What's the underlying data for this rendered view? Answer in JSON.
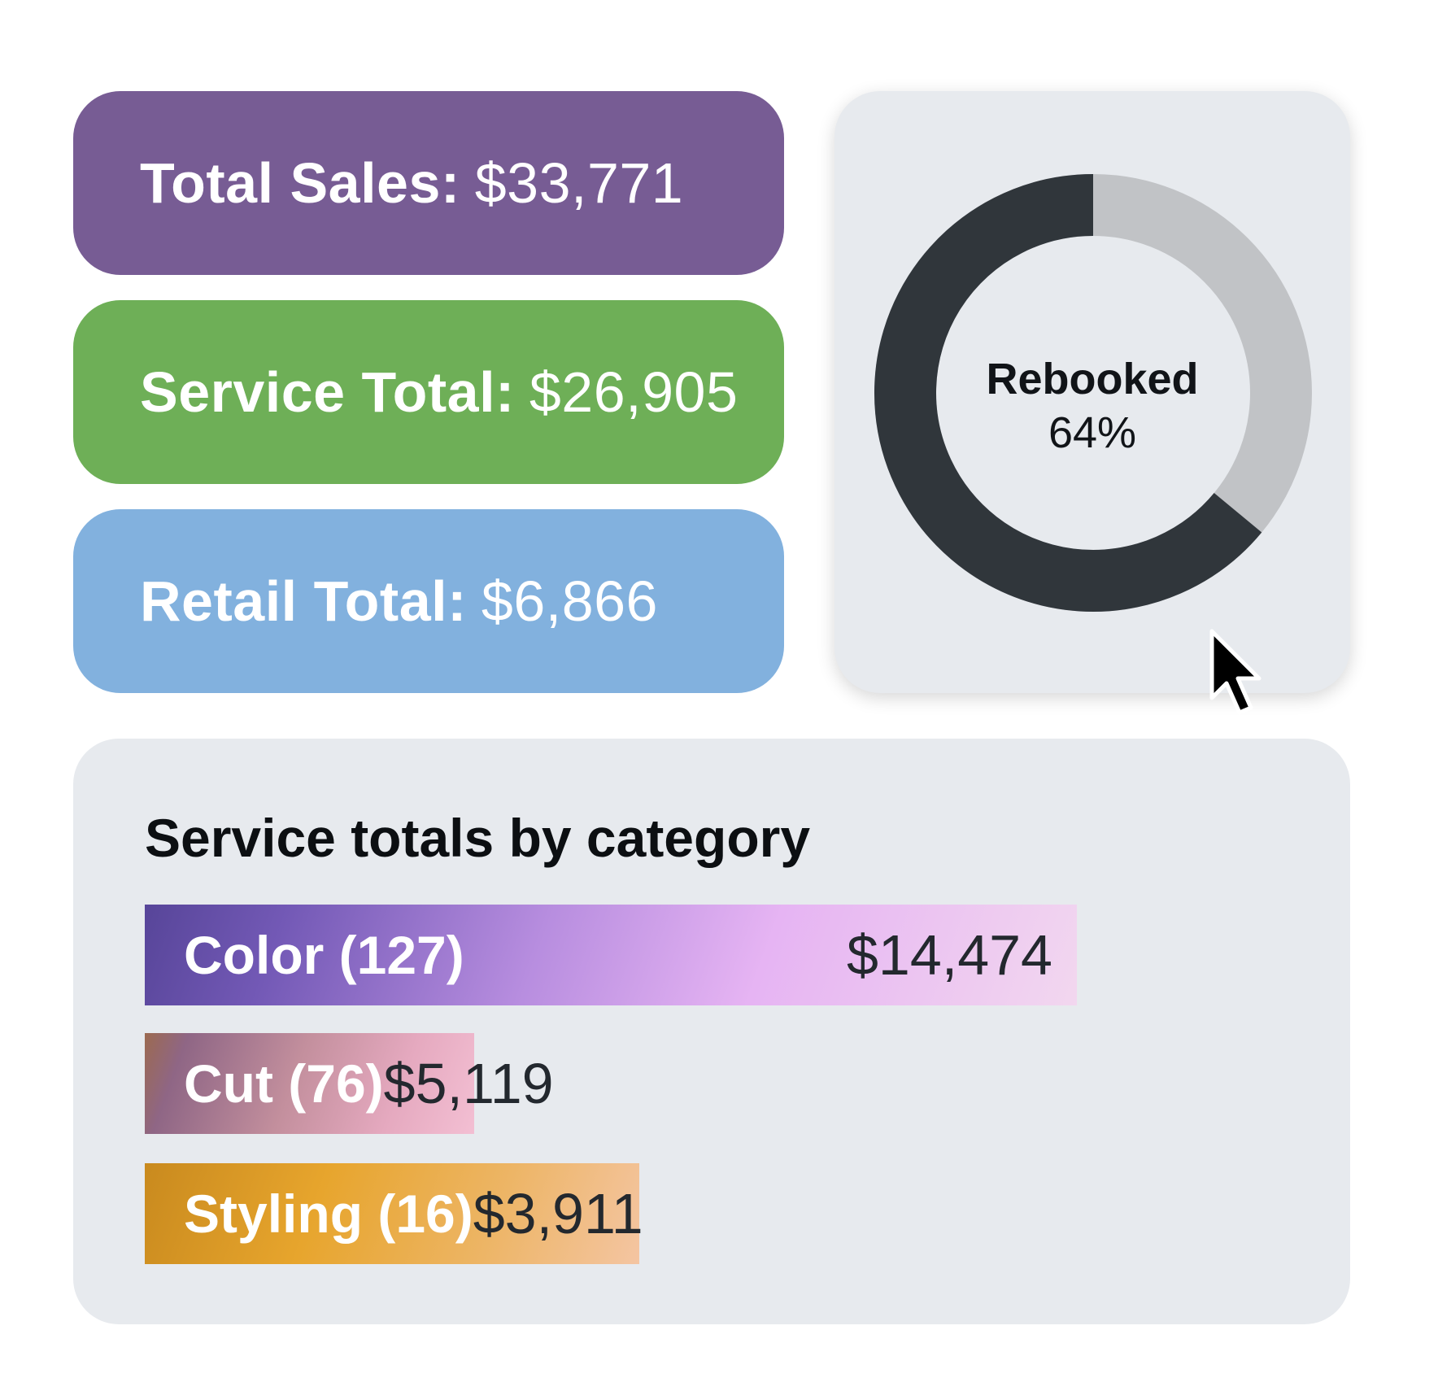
{
  "stats": {
    "total_sales": {
      "label": "Total Sales:",
      "value": "$33,771",
      "color": "#775c94"
    },
    "service_total": {
      "label": "Service Total:",
      "value": "$26,905",
      "color": "#6eaf57"
    },
    "retail_total": {
      "label": "Retail Total:",
      "value": "$6,866",
      "color": "#82b1de"
    }
  },
  "rebooked": {
    "title": "Rebooked",
    "percent_label": "64%",
    "percent": 64,
    "colors": {
      "filled": "#30363b",
      "remaining": "#c1c3c6"
    }
  },
  "categories_panel": {
    "title": "Service totals by category"
  },
  "chart_data": {
    "type": "bar",
    "title": "Service totals by category",
    "orientation": "horizontal",
    "categories": [
      "Color (127)",
      "Cut (76)",
      "Styling (16)"
    ],
    "values": [
      14474,
      5119,
      3911
    ],
    "value_labels": [
      "$14,474",
      "$5,119",
      "$3,911"
    ],
    "xlabel": "",
    "ylabel": "",
    "xlim": [
      0,
      14474
    ]
  },
  "icons": {
    "cursor": "mouse-pointer-icon"
  }
}
